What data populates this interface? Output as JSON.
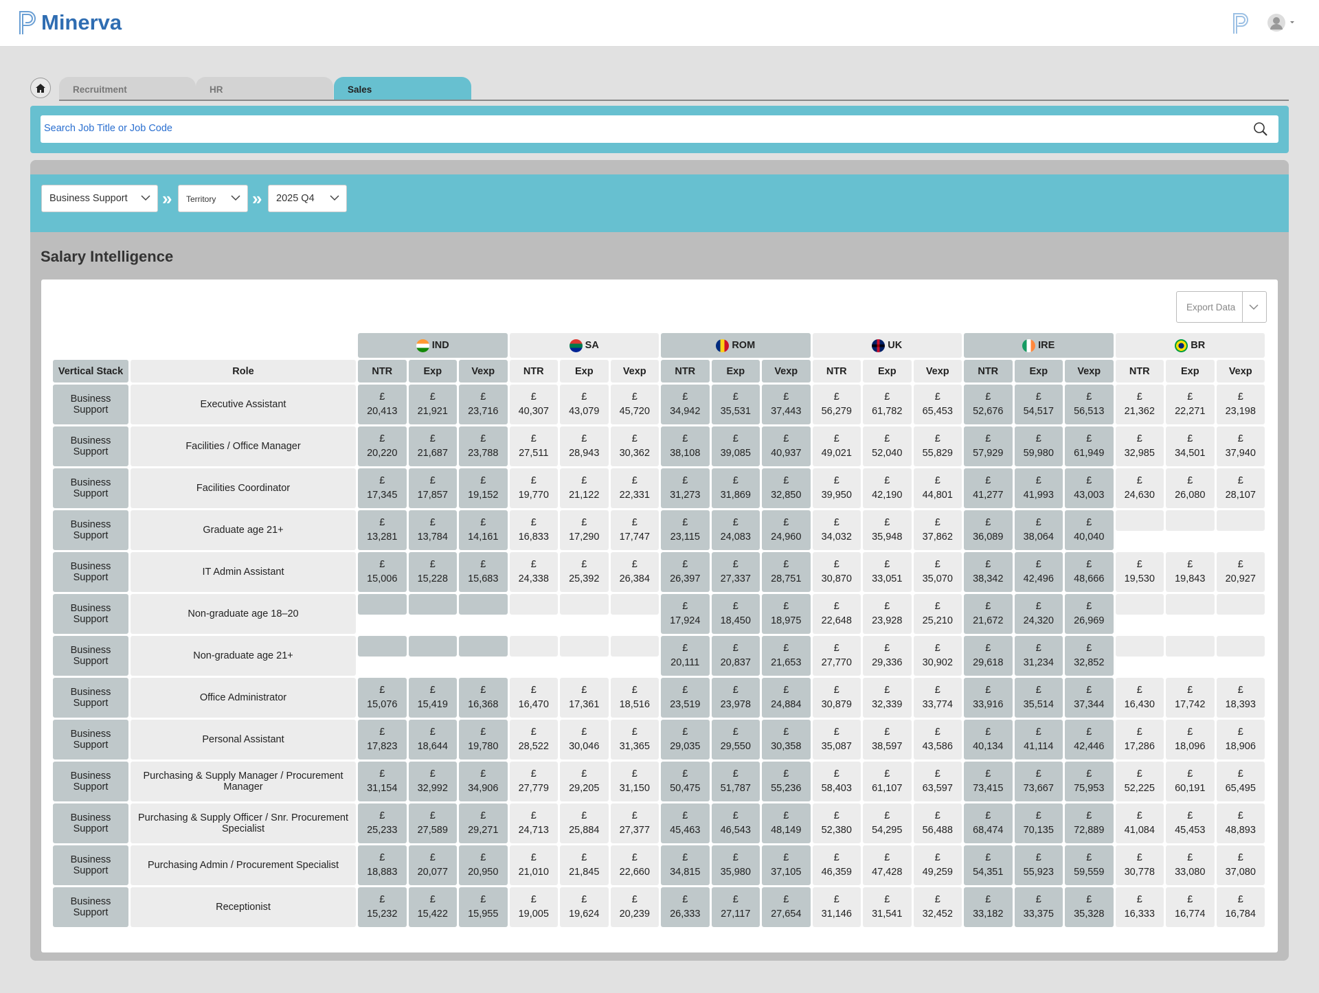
{
  "header": {
    "logo": "Minerva"
  },
  "tabs": [
    "Recruitment",
    "HR",
    "Sales"
  ],
  "search_placeholder": "Search Job Title or Job Code",
  "filters": [
    "Business Support",
    "Territory",
    "2025 Q4"
  ],
  "section_title": "Salary Intelligence",
  "export_button": "Export Data",
  "table": {
    "columns": [
      "Vertical Stack",
      "Role"
    ],
    "countries": [
      "IND",
      "SA",
      "ROM",
      "UK",
      "IRE",
      "BR"
    ],
    "subcolumns": [
      "NTR",
      "Exp",
      "Vexp"
    ],
    "rows": [
      {
        "vertical_stack": "Business Support",
        "role": "Executive Assistant",
        "cells": [
          "£ 20,413",
          "£ 21,921",
          "£ 23,716",
          "£ 40,307",
          "£ 43,079",
          "£ 45,720",
          "£ 34,942",
          "£ 35,531",
          "£ 37,443",
          "£ 56,279",
          "£ 61,782",
          "£ 65,453",
          "£ 52,676",
          "£ 54,517",
          "£ 56,513",
          "£ 21,362",
          "£ 22,271",
          "£ 23,198"
        ]
      },
      {
        "vertical_stack": "Business Support",
        "role": "Facilities / Office Manager",
        "cells": [
          "£ 20,220",
          "£ 21,687",
          "£ 23,788",
          "£ 27,511",
          "£ 28,943",
          "£ 30,362",
          "£ 38,108",
          "£ 39,085",
          "£ 40,937",
          "£ 49,021",
          "£ 52,040",
          "£ 55,829",
          "£ 57,929",
          "£ 59,980",
          "£ 61,949",
          "£ 32,985",
          "£ 34,501",
          "£ 37,940"
        ]
      },
      {
        "vertical_stack": "Business Support",
        "role": "Facilities Coordinator",
        "cells": [
          "£ 17,345",
          "£ 17,857",
          "£ 19,152",
          "£ 19,770",
          "£ 21,122",
          "£ 22,331",
          "£ 31,273",
          "£ 31,869",
          "£ 32,850",
          "£ 39,950",
          "£ 42,190",
          "£ 44,801",
          "£ 41,277",
          "£ 41,993",
          "£ 43,003",
          "£ 24,630",
          "£ 26,080",
          "£ 28,107"
        ]
      },
      {
        "vertical_stack": "Business Support",
        "role": "Graduate age 21+",
        "cells": [
          "£ 13,281",
          "£ 13,784",
          "£ 14,161",
          "£ 16,833",
          "£ 17,290",
          "£ 17,747",
          "£ 23,115",
          "£ 24,083",
          "£ 24,960",
          "£ 34,032",
          "£ 35,948",
          "£ 37,862",
          "£ 36,089",
          "£ 38,064",
          "£ 40,040",
          null,
          null,
          null
        ]
      },
      {
        "vertical_stack": "Business Support",
        "role": "IT Admin Assistant",
        "cells": [
          "£ 15,006",
          "£ 15,228",
          "£ 15,683",
          "£ 24,338",
          "£ 25,392",
          "£ 26,384",
          "£ 26,397",
          "£ 27,337",
          "£ 28,751",
          "£ 30,870",
          "£ 33,051",
          "£ 35,070",
          "£ 38,342",
          "£ 42,496",
          "£ 48,666",
          "£ 19,530",
          "£ 19,843",
          "£ 20,927"
        ]
      },
      {
        "vertical_stack": "Business Support",
        "role": "Non-graduate age 18–20",
        "cells": [
          null,
          null,
          null,
          null,
          null,
          null,
          "£ 17,924",
          "£ 18,450",
          "£ 18,975",
          "£ 22,648",
          "£ 23,928",
          "£ 25,210",
          "£ 21,672",
          "£ 24,320",
          "£ 26,969",
          null,
          null,
          null
        ]
      },
      {
        "vertical_stack": "Business Support",
        "role": "Non-graduate age 21+",
        "cells": [
          null,
          null,
          null,
          null,
          null,
          null,
          "£ 20,111",
          "£ 20,837",
          "£ 21,653",
          "£ 27,770",
          "£ 29,336",
          "£ 30,902",
          "£ 29,618",
          "£ 31,234",
          "£ 32,852",
          null,
          null,
          null
        ]
      },
      {
        "vertical_stack": "Business Support",
        "role": "Office Administrator",
        "cells": [
          "£ 15,076",
          "£ 15,419",
          "£ 16,368",
          "£ 16,470",
          "£ 17,361",
          "£ 18,516",
          "£ 23,519",
          "£ 23,978",
          "£ 24,884",
          "£ 30,879",
          "£ 32,339",
          "£ 33,774",
          "£ 33,916",
          "£ 35,514",
          "£ 37,344",
          "£ 16,430",
          "£ 17,742",
          "£ 18,393"
        ]
      },
      {
        "vertical_stack": "Business Support",
        "role": "Personal Assistant",
        "cells": [
          "£ 17,823",
          "£ 18,644",
          "£ 19,780",
          "£ 28,522",
          "£ 30,046",
          "£ 31,365",
          "£ 29,035",
          "£ 29,550",
          "£ 30,358",
          "£ 35,087",
          "£ 38,597",
          "£ 43,586",
          "£ 40,134",
          "£ 41,114",
          "£ 42,446",
          "£ 17,286",
          "£ 18,096",
          "£ 18,906"
        ]
      },
      {
        "vertical_stack": "Business Support",
        "role": "Purchasing & Supply Manager / Procurement Manager",
        "cells": [
          "£ 31,154",
          "£ 32,992",
          "£ 34,906",
          "£ 27,779",
          "£ 29,205",
          "£ 31,150",
          "£ 50,475",
          "£ 51,787",
          "£ 55,236",
          "£ 58,403",
          "£ 61,107",
          "£ 63,597",
          "£ 73,415",
          "£ 73,667",
          "£ 75,953",
          "£ 52,225",
          "£ 60,191",
          "£ 65,495"
        ]
      },
      {
        "vertical_stack": "Business Support",
        "role": "Purchasing & Supply Officer / Snr. Procurement Specialist",
        "cells": [
          "£ 25,233",
          "£ 27,589",
          "£ 29,271",
          "£ 24,713",
          "£ 25,884",
          "£ 27,377",
          "£ 45,463",
          "£ 46,543",
          "£ 48,149",
          "£ 52,380",
          "£ 54,295",
          "£ 56,488",
          "£ 68,474",
          "£ 70,135",
          "£ 72,889",
          "£ 41,084",
          "£ 45,453",
          "£ 48,893"
        ]
      },
      {
        "vertical_stack": "Business Support",
        "role": "Purchasing Admin / Procurement Specialist",
        "cells": [
          "£ 18,883",
          "£ 20,077",
          "£ 20,950",
          "£ 21,010",
          "£ 21,845",
          "£ 22,660",
          "£ 34,815",
          "£ 35,980",
          "£ 37,105",
          "£ 46,359",
          "£ 47,428",
          "£ 49,259",
          "£ 54,351",
          "£ 55,923",
          "£ 59,559",
          "£ 30,778",
          "£ 33,080",
          "£ 37,080"
        ]
      },
      {
        "vertical_stack": "Business Support",
        "role": "Receptionist",
        "cells": [
          "£ 15,232",
          "£ 15,422",
          "£ 15,955",
          "£ 19,005",
          "£ 19,624",
          "£ 20,239",
          "£ 26,333",
          "£ 27,117",
          "£ 27,654",
          "£ 31,146",
          "£ 31,541",
          "£ 32,452",
          "£ 33,182",
          "£ 33,375",
          "£ 35,328",
          "£ 16,333",
          "£ 16,774",
          "£ 16,784"
        ]
      }
    ]
  }
}
